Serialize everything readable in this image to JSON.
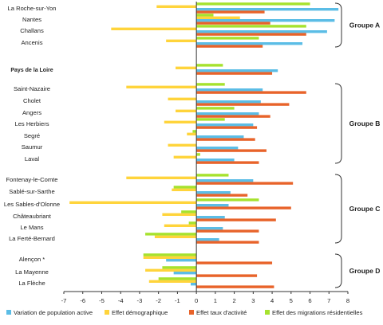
{
  "chart_data": {
    "type": "bar",
    "orientation": "horizontal",
    "xlim": [
      -7,
      8
    ],
    "xticks": [
      -7,
      -6,
      -5,
      -4,
      -3,
      -2,
      -1,
      0,
      1,
      2,
      3,
      4,
      5,
      6,
      7,
      8
    ],
    "grid": false,
    "legend_position": "bottom",
    "categories": [
      "La Roche-sur-Yon",
      "Nantes",
      "Challans",
      "Ancenis",
      "Pays de la Loire",
      "Saint-Nazaire",
      "Cholet",
      "Angers",
      "Les Herbiers",
      "Segré",
      "Saumur",
      "Laval",
      "Fontenay-le-Comte",
      "Sablé-sur-Sarthe",
      "Les Sables-d'Olonne",
      "Châteaubriant",
      "Le Mans",
      "La Ferté-Bernard",
      "Alençon *",
      "La Mayenne",
      "La Flèche"
    ],
    "bold_categories": [
      "Pays de la Loire"
    ],
    "series": [
      {
        "name": "Variation de population active",
        "color": "#5bbde6",
        "values": [
          7.5,
          7.3,
          6.9,
          5.6,
          4.3,
          3.5,
          3.4,
          3.3,
          3.0,
          2.5,
          2.2,
          2.0,
          3.0,
          1.8,
          1.7,
          1.5,
          1.4,
          1.2,
          -1.6,
          -1.2,
          -0.3
        ]
      },
      {
        "name": "Effet démographique",
        "color": "#ffd43b",
        "values": [
          -2.1,
          2.3,
          -4.5,
          -1.6,
          -1.1,
          -3.7,
          -1.5,
          -1.1,
          -1.7,
          -0.5,
          -1.5,
          -1.2,
          -3.7,
          -1.3,
          -6.7,
          -1.8,
          -1.7,
          -2.2,
          -2.8,
          -2.7,
          -2.5
        ]
      },
      {
        "name": "Effet taux d'activité",
        "color": "#e8632a",
        "values": [
          3.6,
          3.9,
          5.8,
          3.5,
          4.0,
          5.8,
          4.9,
          3.9,
          3.2,
          3.1,
          3.7,
          3.3,
          5.1,
          2.7,
          5.0,
          4.2,
          3.3,
          3.3,
          4.0,
          3.2,
          4.1
        ]
      },
      {
        "name": "Effet des migrations résidentielles",
        "color": "#a6e22e",
        "values": [
          6.0,
          0.9,
          5.8,
          3.3,
          1.4,
          1.5,
          0.0,
          2.0,
          1.5,
          -0.2,
          0.0,
          0.2,
          1.7,
          -1.2,
          3.3,
          -0.8,
          -0.4,
          -2.7,
          -2.8,
          -1.8,
          -2.0
        ]
      }
    ],
    "groups": [
      {
        "label": "Groupe A",
        "first": 0,
        "last": 3
      },
      {
        "label": "Groupe B",
        "first": 5,
        "last": 11
      },
      {
        "label": "Groupe C",
        "first": 12,
        "last": 17
      },
      {
        "label": "Groupe D",
        "first": 18,
        "last": 20
      }
    ]
  }
}
